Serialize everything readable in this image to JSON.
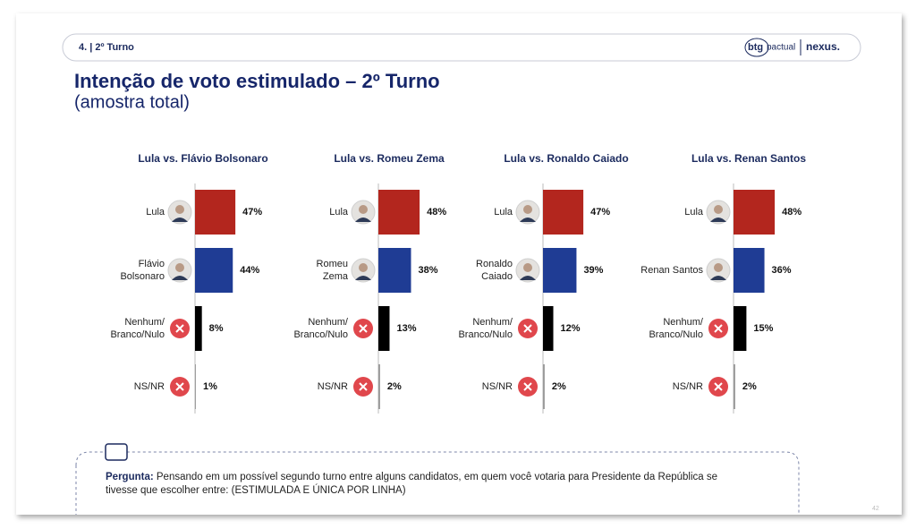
{
  "header": {
    "section": "4. | 2º Turno",
    "brand_btg": "btg",
    "brand_pactual": "pactual",
    "brand_nexus": "nexus."
  },
  "title": "Intenção de voto estimulado – 2º Turno",
  "subtitle": "(amostra total)",
  "question": {
    "label": "Pergunta:",
    "text": "Pensando em um possível segundo turno entre alguns candidatos, em quem você votaria para Presidente da República se tivesse que escolher entre: (ESTIMULADA E ÚNICA POR LINHA)"
  },
  "page_number": "42",
  "chart_data": [
    {
      "type": "bar",
      "orientation": "horizontal",
      "title": "Lula vs. Flávio Bolsonaro",
      "categories": [
        "Lula",
        "Flávio\nBolsonaro",
        "Nenhum/\nBranco/Nulo",
        "NS/NR"
      ],
      "values": [
        47,
        44,
        8,
        1
      ],
      "value_labels": [
        "47%",
        "44%",
        "8%",
        "1%"
      ],
      "colors": [
        "#b3261e",
        "#1f3c94",
        "#000000",
        "#9a9a9a"
      ],
      "xlim": [
        0,
        50
      ]
    },
    {
      "type": "bar",
      "orientation": "horizontal",
      "title": "Lula vs. Romeu Zema",
      "categories": [
        "Lula",
        "Romeu\nZema",
        "Nenhum/\nBranco/Nulo",
        "NS/NR"
      ],
      "values": [
        48,
        38,
        13,
        2
      ],
      "value_labels": [
        "48%",
        "38%",
        "13%",
        "2%"
      ],
      "colors": [
        "#b3261e",
        "#1f3c94",
        "#000000",
        "#9a9a9a"
      ],
      "xlim": [
        0,
        50
      ]
    },
    {
      "type": "bar",
      "orientation": "horizontal",
      "title": "Lula vs. Ronaldo Caiado",
      "categories": [
        "Lula",
        "Ronaldo\nCaiado",
        "Nenhum/\nBranco/Nulo",
        "NS/NR"
      ],
      "values": [
        47,
        39,
        12,
        2
      ],
      "value_labels": [
        "47%",
        "39%",
        "12%",
        "2%"
      ],
      "colors": [
        "#b3261e",
        "#1f3c94",
        "#000000",
        "#9a9a9a"
      ],
      "xlim": [
        0,
        50
      ]
    },
    {
      "type": "bar",
      "orientation": "horizontal",
      "title": "Lula vs. Renan Santos",
      "categories": [
        "Lula",
        "Renan Santos",
        "Nenhum/\nBranco/Nulo",
        "NS/NR"
      ],
      "values": [
        48,
        36,
        15,
        2
      ],
      "value_labels": [
        "48%",
        "36%",
        "15%",
        "2%"
      ],
      "colors": [
        "#b3261e",
        "#1f3c94",
        "#000000",
        "#9a9a9a"
      ],
      "xlim": [
        0,
        50
      ]
    }
  ]
}
